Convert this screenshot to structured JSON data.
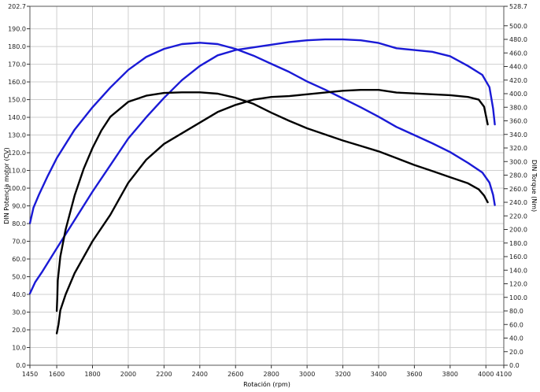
{
  "chart_data": {
    "type": "line",
    "xlabel": "Rotación (rpm)",
    "ylabel_left": "DIN Potencia motor (CV)",
    "ylabel_right": "DIN Torque (Nm)",
    "xlim": [
      1450,
      4100
    ],
    "ylim_left": [
      0,
      202.7
    ],
    "ylim_right": [
      0,
      528.7
    ],
    "x_ticks": [
      1450,
      1600,
      1800,
      2000,
      2200,
      2400,
      2600,
      2800,
      3000,
      3200,
      3400,
      3600,
      3800,
      4000,
      4100
    ],
    "y_left_ticks": [
      0,
      10,
      20,
      30,
      40,
      50,
      60,
      70,
      80,
      90,
      100,
      110,
      120,
      130,
      140,
      150,
      160,
      170,
      180,
      190,
      202.7
    ],
    "y_right_ticks": [
      0,
      20,
      40,
      60,
      80,
      100,
      120,
      140,
      160,
      180,
      200,
      220,
      240,
      260,
      280,
      300,
      320,
      340,
      360,
      380,
      400,
      420,
      440,
      460,
      480,
      500,
      528.7
    ],
    "grid": true,
    "series": [
      {
        "color": "#1a1ad6",
        "axis": "left",
        "points": [
          [
            1450,
            40.5
          ],
          [
            1480,
            47
          ],
          [
            1520,
            53
          ],
          [
            1600,
            66
          ],
          [
            1700,
            82
          ],
          [
            1800,
            98
          ],
          [
            1900,
            113
          ],
          [
            2000,
            128
          ],
          [
            2100,
            140
          ],
          [
            2200,
            151
          ],
          [
            2300,
            161
          ],
          [
            2400,
            169
          ],
          [
            2500,
            175
          ],
          [
            2600,
            178
          ],
          [
            2700,
            179.5
          ],
          [
            2800,
            181
          ],
          [
            2900,
            182.5
          ],
          [
            3000,
            183.5
          ],
          [
            3100,
            184
          ],
          [
            3200,
            184
          ],
          [
            3300,
            183.5
          ],
          [
            3400,
            182
          ],
          [
            3500,
            179
          ],
          [
            3600,
            178
          ],
          [
            3700,
            177
          ],
          [
            3800,
            174.5
          ],
          [
            3900,
            169
          ],
          [
            3980,
            164
          ],
          [
            4020,
            157
          ],
          [
            4040,
            145
          ],
          [
            4050,
            136
          ]
        ]
      },
      {
        "color": "#1a1ad6",
        "axis": "right",
        "points": [
          [
            1450,
            209
          ],
          [
            1470,
            232
          ],
          [
            1500,
            251
          ],
          [
            1550,
            279
          ],
          [
            1600,
            305
          ],
          [
            1700,
            347
          ],
          [
            1800,
            380
          ],
          [
            1900,
            409
          ],
          [
            2000,
            435
          ],
          [
            2100,
            454
          ],
          [
            2200,
            466
          ],
          [
            2300,
            473
          ],
          [
            2400,
            475
          ],
          [
            2500,
            473
          ],
          [
            2600,
            466
          ],
          [
            2700,
            456
          ],
          [
            2800,
            444
          ],
          [
            2900,
            432
          ],
          [
            3000,
            418
          ],
          [
            3100,
            406
          ],
          [
            3200,
            393
          ],
          [
            3300,
            380
          ],
          [
            3400,
            366
          ],
          [
            3500,
            351
          ],
          [
            3600,
            339
          ],
          [
            3700,
            327
          ],
          [
            3800,
            314
          ],
          [
            3900,
            298
          ],
          [
            3980,
            284
          ],
          [
            4020,
            269
          ],
          [
            4040,
            251
          ],
          [
            4050,
            236
          ]
        ]
      },
      {
        "color": "#000000",
        "axis": "left",
        "points": [
          [
            1600,
            18
          ],
          [
            1610,
            23
          ],
          [
            1620,
            31
          ],
          [
            1650,
            40
          ],
          [
            1700,
            52
          ],
          [
            1800,
            70
          ],
          [
            1900,
            85
          ],
          [
            2000,
            103
          ],
          [
            2100,
            116
          ],
          [
            2200,
            125
          ],
          [
            2300,
            131
          ],
          [
            2400,
            137
          ],
          [
            2500,
            143
          ],
          [
            2600,
            147
          ],
          [
            2700,
            150
          ],
          [
            2800,
            151.5
          ],
          [
            2900,
            152
          ],
          [
            3000,
            153
          ],
          [
            3100,
            154
          ],
          [
            3200,
            155
          ],
          [
            3300,
            155.5
          ],
          [
            3400,
            155.5
          ],
          [
            3500,
            154
          ],
          [
            3600,
            153.5
          ],
          [
            3700,
            153
          ],
          [
            3800,
            152.5
          ],
          [
            3900,
            151.5
          ],
          [
            3960,
            150
          ],
          [
            3990,
            146
          ],
          [
            4010,
            136
          ]
        ]
      },
      {
        "color": "#000000",
        "axis": "right",
        "points": [
          [
            1600,
            80
          ],
          [
            1603,
            100
          ],
          [
            1606,
            125
          ],
          [
            1620,
            160
          ],
          [
            1650,
            200
          ],
          [
            1700,
            250
          ],
          [
            1750,
            289
          ],
          [
            1800,
            320
          ],
          [
            1850,
            346
          ],
          [
            1900,
            366
          ],
          [
            2000,
            388
          ],
          [
            2100,
            397
          ],
          [
            2200,
            401
          ],
          [
            2300,
            402
          ],
          [
            2400,
            402
          ],
          [
            2500,
            400
          ],
          [
            2600,
            394
          ],
          [
            2700,
            385
          ],
          [
            2800,
            372
          ],
          [
            2900,
            360
          ],
          [
            3000,
            349
          ],
          [
            3100,
            340
          ],
          [
            3200,
            331
          ],
          [
            3300,
            323
          ],
          [
            3400,
            315
          ],
          [
            3500,
            305
          ],
          [
            3600,
            295
          ],
          [
            3700,
            286
          ],
          [
            3800,
            277
          ],
          [
            3900,
            268
          ],
          [
            3960,
            259
          ],
          [
            3990,
            250
          ],
          [
            4010,
            240
          ]
        ]
      }
    ]
  }
}
